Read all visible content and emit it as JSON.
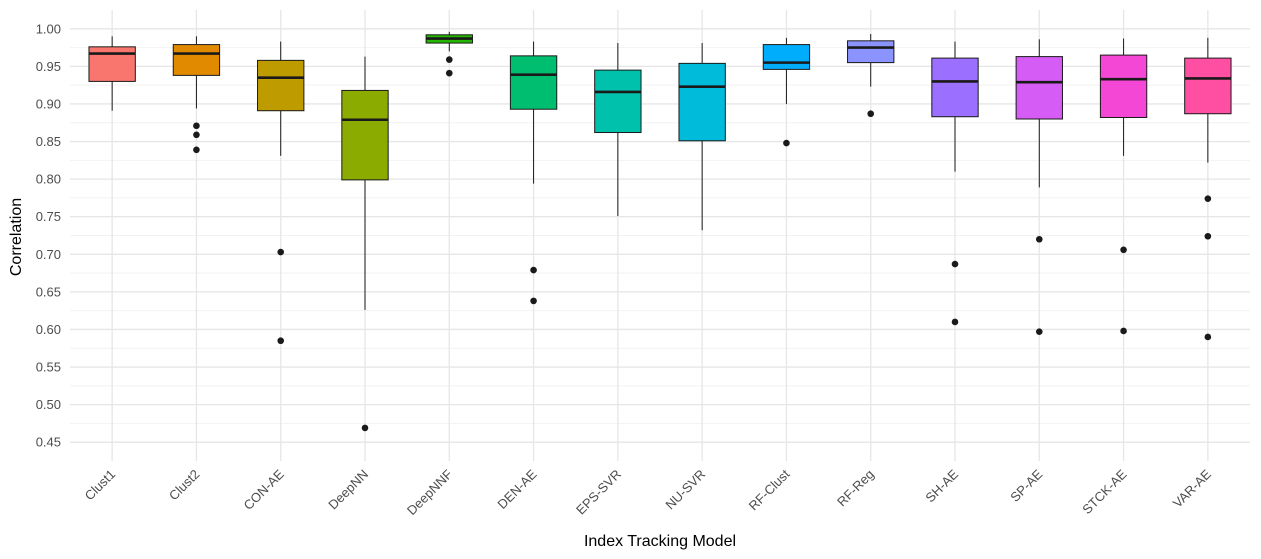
{
  "chart_data": {
    "type": "box",
    "xlabel": "Index Tracking Model",
    "ylabel": "Correlation",
    "ylim": [
      0.425,
      1.025
    ],
    "yticks": [
      0.45,
      0.5,
      0.55,
      0.6,
      0.65,
      0.7,
      0.75,
      0.8,
      0.85,
      0.9,
      0.95,
      1.0
    ],
    "ytick_labels": [
      "0.45",
      "0.50",
      "0.55",
      "0.60",
      "0.65",
      "0.70",
      "0.75",
      "0.80",
      "0.85",
      "0.90",
      "0.95",
      "1.00"
    ],
    "grid": true,
    "legend": "none",
    "categories": [
      "Clust1",
      "Clust2",
      "CON-AE",
      "DeepNN",
      "DeepNNF",
      "DEN-AE",
      "EPS-SVR",
      "NU-SVR",
      "RF-Clust",
      "RF-Reg",
      "SH-AE",
      "SP-AE",
      "STCK-AE",
      "VAR-AE"
    ],
    "boxes": [
      {
        "category": "Clust1",
        "whisker_low": 0.891,
        "q1": 0.93,
        "median": 0.967,
        "q3": 0.976,
        "whisker_high": 0.99,
        "outliers": [],
        "color": "#F8766D"
      },
      {
        "category": "Clust2",
        "whisker_low": 0.894,
        "q1": 0.938,
        "median": 0.967,
        "q3": 0.979,
        "whisker_high": 0.99,
        "outliers": [
          0.871,
          0.859,
          0.839
        ],
        "color": "#E18A00"
      },
      {
        "category": "CON-AE",
        "whisker_low": 0.831,
        "q1": 0.891,
        "median": 0.935,
        "q3": 0.958,
        "whisker_high": 0.983,
        "outliers": [
          0.703,
          0.585
        ],
        "color": "#BE9C00"
      },
      {
        "category": "DeepNN",
        "whisker_low": 0.626,
        "q1": 0.799,
        "median": 0.879,
        "q3": 0.918,
        "whisker_high": 0.963,
        "outliers": [
          0.469
        ],
        "color": "#8CAB00"
      },
      {
        "category": "DeepNNF",
        "whisker_low": 0.97,
        "q1": 0.981,
        "median": 0.987,
        "q3": 0.992,
        "whisker_high": 0.996,
        "outliers": [
          0.959,
          0.941
        ],
        "color": "#24B700"
      },
      {
        "category": "DEN-AE",
        "whisker_low": 0.794,
        "q1": 0.893,
        "median": 0.939,
        "q3": 0.964,
        "whisker_high": 0.983,
        "outliers": [
          0.679,
          0.638
        ],
        "color": "#00BE70"
      },
      {
        "category": "EPS-SVR",
        "whisker_low": 0.751,
        "q1": 0.862,
        "median": 0.916,
        "q3": 0.945,
        "whisker_high": 0.981,
        "outliers": [],
        "color": "#00C1AB"
      },
      {
        "category": "NU-SVR",
        "whisker_low": 0.732,
        "q1": 0.851,
        "median": 0.923,
        "q3": 0.954,
        "whisker_high": 0.981,
        "outliers": [],
        "color": "#00BBDA"
      },
      {
        "category": "RF-Clust",
        "whisker_low": 0.9,
        "q1": 0.946,
        "median": 0.955,
        "q3": 0.979,
        "whisker_high": 0.988,
        "outliers": [
          0.848
        ],
        "color": "#00ACFC"
      },
      {
        "category": "RF-Reg",
        "whisker_low": 0.923,
        "q1": 0.955,
        "median": 0.975,
        "q3": 0.984,
        "whisker_high": 0.993,
        "outliers": [
          0.887
        ],
        "color": "#8B93FF"
      },
      {
        "category": "SH-AE",
        "whisker_low": 0.81,
        "q1": 0.883,
        "median": 0.93,
        "q3": 0.961,
        "whisker_high": 0.983,
        "outliers": [
          0.687,
          0.61
        ],
        "color": "#9B6FFF"
      },
      {
        "category": "SP-AE",
        "whisker_low": 0.789,
        "q1": 0.88,
        "median": 0.929,
        "q3": 0.963,
        "whisker_high": 0.986,
        "outliers": [
          0.72,
          0.597
        ],
        "color": "#D55CF4"
      },
      {
        "category": "STCK-AE",
        "whisker_low": 0.831,
        "q1": 0.882,
        "median": 0.933,
        "q3": 0.965,
        "whisker_high": 0.987,
        "outliers": [
          0.706,
          0.598
        ],
        "color": "#F547D6"
      },
      {
        "category": "VAR-AE",
        "whisker_low": 0.822,
        "q1": 0.887,
        "median": 0.934,
        "q3": 0.961,
        "whisker_high": 0.988,
        "outliers": [
          0.774,
          0.724,
          0.59
        ],
        "color": "#FF4FA3"
      }
    ]
  }
}
